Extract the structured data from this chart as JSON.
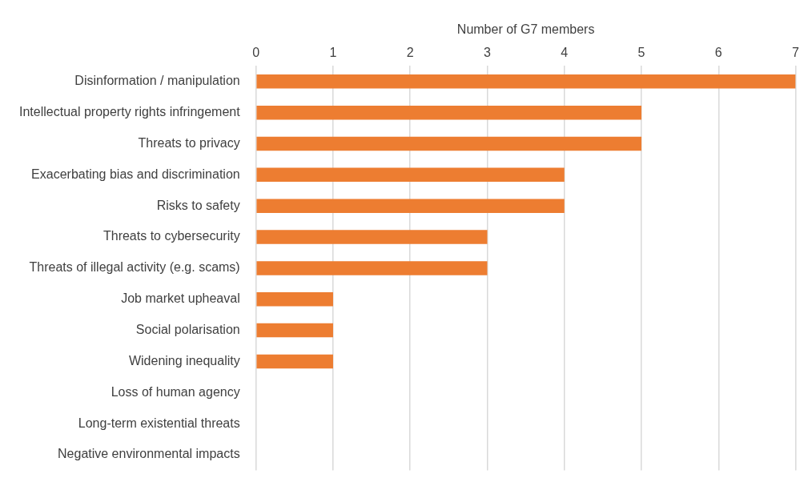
{
  "chart_data": {
    "type": "bar",
    "orientation": "horizontal",
    "xlabel": "Number of G7 members",
    "categories": [
      "Disinformation / manipulation",
      "Intellectual property rights infringement",
      "Threats to privacy",
      "Exacerbating bias and discrimination",
      "Risks to safety",
      "Threats to cybersecurity",
      "Threats of illegal activity (e.g. scams)",
      "Job market upheaval",
      "Social polarisation",
      "Widening inequality",
      "Loss of human agency",
      "Long-term existential threats",
      "Negative environmental impacts"
    ],
    "values": [
      7,
      5,
      5,
      4,
      4,
      3,
      3,
      1,
      1,
      1,
      0,
      0,
      0
    ],
    "color": "#ed7d31",
    "xlim": [
      0,
      7
    ],
    "xticks": [
      0,
      1,
      2,
      3,
      4,
      5,
      6,
      7
    ],
    "grid": "x",
    "legend": false
  }
}
